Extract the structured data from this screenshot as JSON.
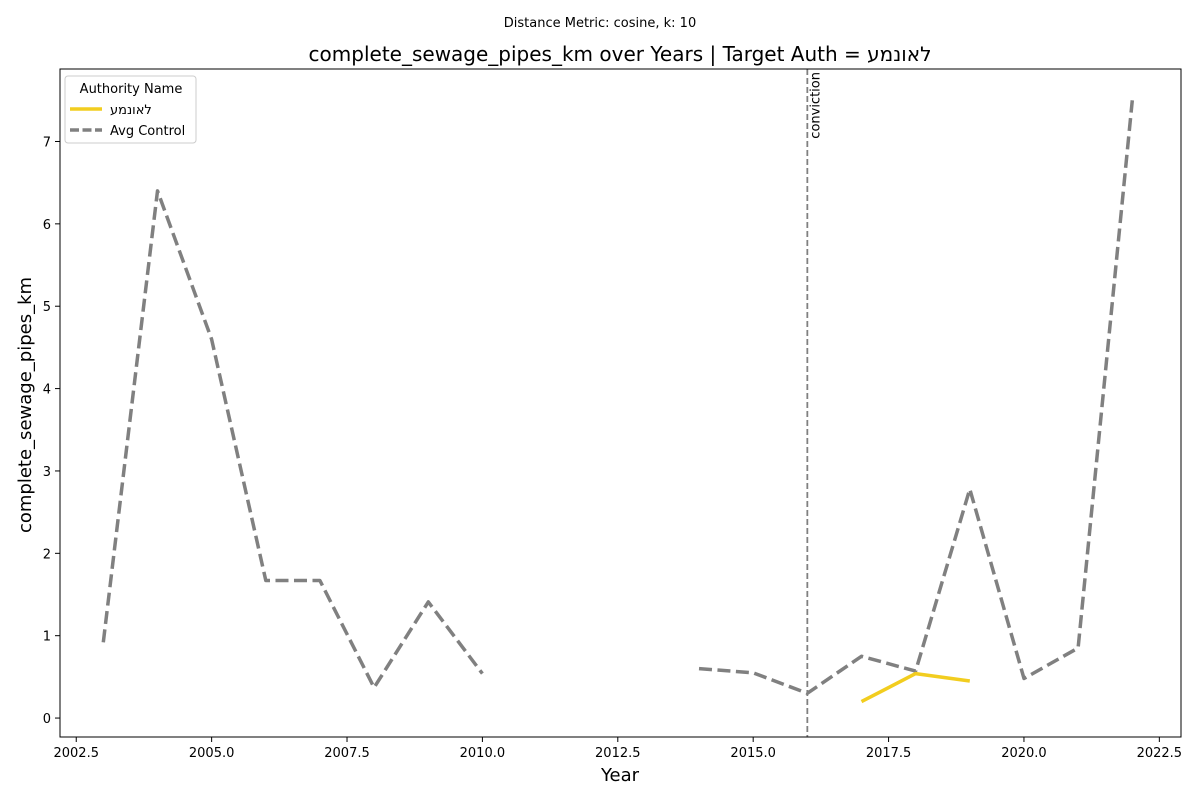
{
  "chart_data": {
    "type": "line",
    "suptitle": "Distance Metric: cosine, k: 10",
    "title": "complete_sewage_pipes_km over Years | Target Auth = לאונמע",
    "xlabel": "Year",
    "ylabel": "complete_sewage_pipes_km",
    "xlim": [
      2002.2,
      2022.9
    ],
    "ylim": [
      -0.23,
      7.88
    ],
    "xticks": [
      2002.5,
      2005.0,
      2007.5,
      2010.0,
      2012.5,
      2015.0,
      2017.5,
      2020.0,
      2022.5
    ],
    "xtick_labels": [
      "2002.5",
      "2005.0",
      "2007.5",
      "2010.0",
      "2012.5",
      "2015.0",
      "2017.5",
      "2020.0",
      "2022.5"
    ],
    "yticks": [
      0,
      1,
      2,
      3,
      4,
      5,
      6,
      7
    ],
    "ytick_labels": [
      "0",
      "1",
      "2",
      "3",
      "4",
      "5",
      "6",
      "7"
    ],
    "grid": false,
    "legend": {
      "title": "Authority Name",
      "placement": "top-left"
    },
    "series": [
      {
        "name": "לאונמע",
        "color": "#f2cd1f",
        "style": "solid",
        "x": [
          2017,
          2018,
          2019
        ],
        "y": [
          0.2,
          0.54,
          0.45
        ]
      },
      {
        "name": "Avg Control",
        "color": "#808080",
        "style": "dashed",
        "x": [
          2003,
          2004,
          2005,
          2006,
          2007,
          2008,
          2009,
          2010,
          2011,
          2012,
          2013,
          2014,
          2015,
          2016,
          2017,
          2018,
          2019,
          2020,
          2021,
          2022
        ],
        "y": [
          0.92,
          6.4,
          4.6,
          1.67,
          1.67,
          0.37,
          1.41,
          0.54,
          null,
          null,
          null,
          0.6,
          0.55,
          0.3,
          0.75,
          0.57,
          2.78,
          0.48,
          0.85,
          7.5
        ]
      }
    ],
    "annotations": [
      {
        "type": "vline",
        "x": 2016,
        "label": "conviction",
        "color": "#808080",
        "style": "dashed"
      }
    ]
  }
}
